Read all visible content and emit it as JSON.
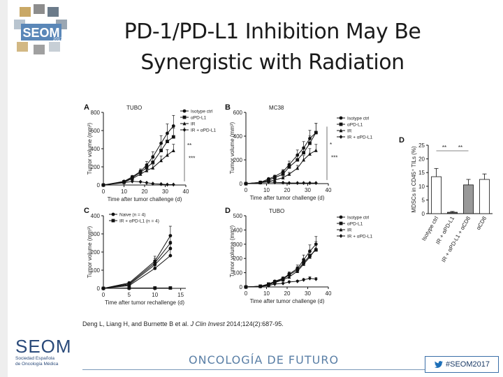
{
  "slide": {
    "title_line1": "PD-1/PD-L1 Inhibition May Be",
    "title_line2": "Synergistic with Radiation",
    "citation_prefix": "Deng L, Liang H, and Burnette B et al. ",
    "citation_journal": "J Clin Invest",
    "citation_suffix": " 2014;124(2):687-95.",
    "logo_top_text": "SEOM",
    "logo_top_year": "2017",
    "footer_brand": "SEOM",
    "footer_brand_sub1": "Sociedad Española",
    "footer_brand_sub2": "de Oncología Médica",
    "footer_slogan": "ONCOLOGÍA DE FUTURO",
    "hashtag": "#SEOM2017",
    "icons": [
      "cube-logo-icon",
      "twitter-bird-icon"
    ]
  },
  "chart_data": [
    {
      "panel": "A",
      "type": "line",
      "title": "TUBO",
      "xlabel": "Time after tumor challenge (d)",
      "ylabel": "Tumor volume (mm³)",
      "xlim": [
        0,
        40
      ],
      "ylim": [
        0,
        800
      ],
      "xticks": [
        0,
        10,
        20,
        30,
        40
      ],
      "yticks": [
        0,
        200,
        400,
        600,
        800
      ],
      "legend": [
        "Isotype ctrl",
        "αPD-L1",
        "IR",
        "IR + αPD-L1"
      ],
      "annotations": [
        "**",
        "***"
      ],
      "series": [
        {
          "name": "Isotype ctrl",
          "marker": "circle",
          "x": [
            0,
            10,
            14,
            18,
            21,
            24,
            28,
            31,
            34
          ],
          "y": [
            0,
            40,
            90,
            150,
            220,
            310,
            460,
            570,
            650
          ]
        },
        {
          "name": "αPD-L1",
          "marker": "square",
          "x": [
            0,
            10,
            14,
            18,
            21,
            24,
            28,
            31,
            34
          ],
          "y": [
            0,
            35,
            80,
            140,
            190,
            250,
            380,
            480,
            530
          ]
        },
        {
          "name": "IR",
          "marker": "triangle",
          "x": [
            0,
            10,
            14,
            18,
            21,
            24,
            28,
            31,
            34
          ],
          "y": [
            0,
            30,
            70,
            120,
            160,
            190,
            270,
            330,
            380
          ]
        },
        {
          "name": "IR + αPD-L1",
          "marker": "diamond",
          "x": [
            0,
            10,
            14,
            18,
            21,
            24,
            28,
            31,
            34
          ],
          "y": [
            0,
            25,
            40,
            35,
            25,
            15,
            10,
            5,
            5
          ]
        }
      ]
    },
    {
      "panel": "B",
      "type": "line",
      "title": "MC38",
      "xlabel": "Time after tumor challenge (d)",
      "ylabel": "Tumor volume (mm³)",
      "xlim": [
        0,
        40
      ],
      "ylim": [
        0,
        600
      ],
      "xticks": [
        0,
        10,
        20,
        30,
        40
      ],
      "yticks": [
        0,
        200,
        400,
        600
      ],
      "legend": [
        "Isotype ctrl",
        "αPD-L1",
        "IR",
        "IR + αPD-L1"
      ],
      "annotations": [
        "*",
        "***"
      ],
      "series": [
        {
          "name": "Isotype ctrl",
          "marker": "circle",
          "x": [
            0,
            7,
            11,
            14,
            18,
            21,
            25,
            28,
            31,
            34
          ],
          "y": [
            0,
            10,
            40,
            60,
            100,
            160,
            240,
            300,
            380,
            430
          ]
        },
        {
          "name": "αPD-L1",
          "marker": "square",
          "x": [
            0,
            7,
            11,
            14,
            18,
            21,
            25,
            28,
            31,
            34
          ],
          "y": [
            0,
            10,
            30,
            50,
            80,
            140,
            200,
            260,
            340,
            430
          ]
        },
        {
          "name": "IR",
          "marker": "triangle",
          "x": [
            0,
            7,
            11,
            14,
            18,
            21,
            25,
            28,
            31,
            34
          ],
          "y": [
            0,
            8,
            20,
            30,
            50,
            80,
            130,
            200,
            250,
            280
          ]
        },
        {
          "name": "IR + αPD-L1",
          "marker": "diamond",
          "x": [
            0,
            7,
            11,
            14,
            18,
            21,
            25,
            28,
            31,
            34
          ],
          "y": [
            0,
            8,
            15,
            10,
            8,
            5,
            5,
            5,
            5,
            5
          ]
        }
      ]
    },
    {
      "panel": "C",
      "type": "line",
      "title": "",
      "xlabel": "Time after tumor rechallenge (d)",
      "ylabel": "Tumor volume (mm³)",
      "xlim": [
        0,
        16
      ],
      "ylim": [
        0,
        400
      ],
      "xticks": [
        0,
        5,
        10,
        15
      ],
      "yticks": [
        0,
        100,
        200,
        300,
        400
      ],
      "legend": [
        "Naive (n = 4)",
        "IR + αPD-L1 (n = 4)"
      ],
      "series": [
        {
          "name": "Naive (n = 4)",
          "marker": "circle",
          "x": [
            0,
            5,
            10,
            13
          ],
          "y": [
            0,
            30,
            150,
            290
          ]
        },
        {
          "name": "Naive (n = 4)",
          "marker": "circle",
          "x": [
            0,
            5,
            10,
            13
          ],
          "y": [
            0,
            25,
            140,
            250
          ]
        },
        {
          "name": "Naive (n = 4)",
          "marker": "circle",
          "x": [
            0,
            5,
            10,
            13
          ],
          "y": [
            0,
            20,
            130,
            220
          ]
        },
        {
          "name": "Naive (n = 4)",
          "marker": "circle",
          "x": [
            0,
            5,
            10,
            13
          ],
          "y": [
            0,
            15,
            110,
            180
          ]
        },
        {
          "name": "IR + αPD-L1 (n = 4)",
          "marker": "square",
          "x": [
            0,
            5,
            10,
            13
          ],
          "y": [
            0,
            2,
            2,
            2
          ]
        }
      ]
    },
    {
      "panel": "D",
      "type": "line",
      "title": "TUBO",
      "xlabel": "Time after tumor challenge (d)",
      "ylabel": "Tumor volume (mm³)",
      "xlim": [
        0,
        40
      ],
      "ylim": [
        0,
        500
      ],
      "xticks": [
        0,
        10,
        20,
        30,
        40
      ],
      "yticks": [
        0,
        100,
        200,
        300,
        400,
        500
      ],
      "legend": [
        "Isotype ctrl",
        "αPD-L1",
        "IR",
        "IR + αPD-L1"
      ],
      "series": [
        {
          "name": "Isotype ctrl",
          "marker": "circle",
          "x": [
            0,
            7,
            11,
            14,
            18,
            21,
            25,
            28,
            31,
            34
          ],
          "y": [
            0,
            5,
            20,
            40,
            60,
            90,
            130,
            190,
            250,
            300
          ]
        },
        {
          "name": "αPD-L1",
          "marker": "square",
          "x": [
            0,
            7,
            11,
            14,
            18,
            21,
            25,
            28,
            31,
            34
          ],
          "y": [
            0,
            5,
            20,
            35,
            55,
            85,
            120,
            170,
            220,
            260
          ]
        },
        {
          "name": "IR",
          "marker": "triangle",
          "x": [
            0,
            7,
            11,
            14,
            18,
            21,
            25,
            28,
            31,
            34
          ],
          "y": [
            0,
            4,
            15,
            30,
            50,
            70,
            110,
            160,
            210,
            270
          ]
        },
        {
          "name": "IR + αPD-L1",
          "marker": "diamond",
          "x": [
            0,
            7,
            11,
            14,
            18,
            21,
            25,
            28,
            31,
            34
          ],
          "y": [
            0,
            3,
            10,
            20,
            25,
            35,
            40,
            50,
            60,
            55
          ]
        }
      ]
    },
    {
      "panel": "D",
      "type": "bar",
      "ylabel": "MDSCs in CD45⁺ TILs (%)",
      "ylim": [
        0,
        25
      ],
      "yticks": [
        0,
        5,
        10,
        15,
        20,
        25
      ],
      "categories": [
        "Isotype ctrl",
        "IR + αPD-L1",
        "IR + αPD-L1 + αCD8",
        "αCD8"
      ],
      "values": [
        13.5,
        0.5,
        10.5,
        12.5
      ],
      "errors": [
        3.0,
        0.3,
        2.0,
        2.0
      ],
      "colors": [
        "#ffffff",
        "#555555",
        "#999999",
        "#ffffff"
      ],
      "annotations": [
        "**",
        "**"
      ]
    }
  ]
}
